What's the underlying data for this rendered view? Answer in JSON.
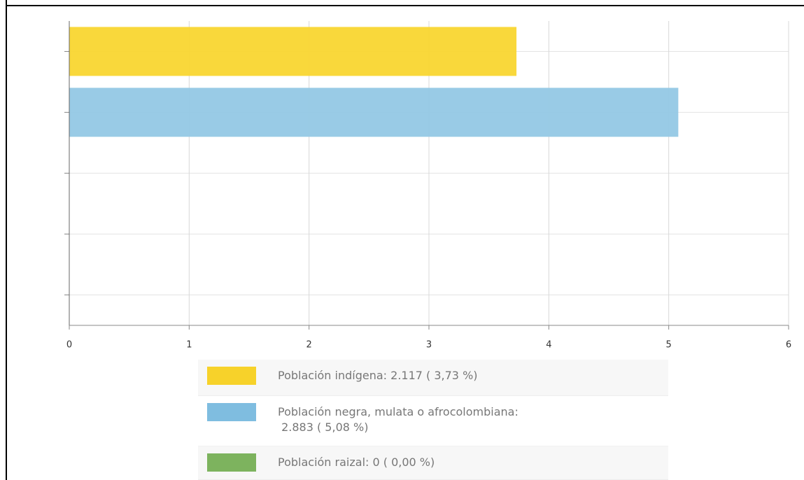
{
  "chart_data": {
    "type": "bar",
    "orientation": "horizontal",
    "categories": [
      null,
      null,
      null,
      null,
      null
    ],
    "values": [
      3.73,
      5.08,
      0,
      0,
      0
    ],
    "colors": [
      "#f9d630",
      "#93c8e5",
      "#7db35e"
    ],
    "xlim": [
      0,
      6
    ],
    "xticks": [
      0,
      1,
      2,
      3,
      4,
      5,
      6
    ],
    "grid": true,
    "legend": [
      {
        "label": "Población indígena:  2.117 ( 3,73 %)",
        "color": "#f7d22a"
      },
      {
        "label": "Población negra, mulata o afrocolombiana:\n 2.883 ( 5,08 %)",
        "color": "#7fbde0"
      },
      {
        "label": "Población raizal:  0 ( 0,00 %)",
        "color": "#7db35e"
      }
    ]
  }
}
